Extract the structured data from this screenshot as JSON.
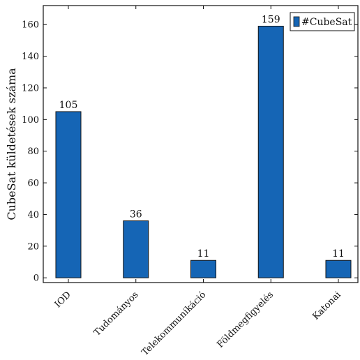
{
  "chart_data": {
    "type": "bar",
    "categories": [
      "IOD",
      "Tudományos",
      "Telekommunikáció",
      "Földmegfigyelés",
      "Katonai"
    ],
    "series": [
      {
        "name": "#CubeSat",
        "values": [
          105,
          36,
          11,
          159,
          11
        ]
      }
    ],
    "data_labels": [
      "105",
      "36",
      "11",
      "159",
      "11"
    ],
    "ylabel": "CubeSat küldetések száma",
    "xlabel": "",
    "ylim": [
      -3,
      172
    ],
    "yticks": [
      0,
      20,
      40,
      60,
      80,
      100,
      120,
      140,
      160
    ],
    "grid": false,
    "legend": "top-right",
    "bar_color": "#1565b5",
    "bar_edge_color": "#111111"
  }
}
